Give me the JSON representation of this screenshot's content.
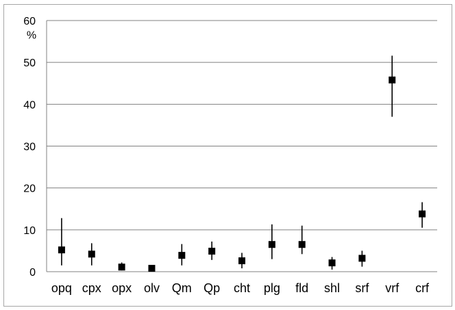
{
  "chart_data": {
    "type": "scatter",
    "title": "",
    "xlabel": "",
    "ylabel": "%",
    "ylim": [
      0,
      60
    ],
    "yticks": [
      "0",
      "10",
      "20",
      "30",
      "40",
      "50",
      "60"
    ],
    "grid": true,
    "categories": [
      "opq",
      "cpx",
      "opx",
      "olv",
      "Qm",
      "Qp",
      "cht",
      "plg",
      "fld",
      "shl",
      "srf",
      "vrf",
      "crf"
    ],
    "series": [
      {
        "values": [
          5.2,
          4.2,
          1.1,
          0.8,
          3.9,
          4.9,
          2.6,
          6.5,
          6.5,
          2.1,
          3.2,
          45.8,
          13.8
        ],
        "error_low": [
          1.5,
          1.5,
          0.3,
          0.2,
          1.5,
          2.8,
          0.8,
          3.0,
          4.2,
          0.5,
          1.2,
          37.0,
          10.5
        ],
        "error_high": [
          12.8,
          6.8,
          2.2,
          1.4,
          6.6,
          7.2,
          4.5,
          11.3,
          11.0,
          3.5,
          5.0,
          51.6,
          16.6
        ]
      }
    ],
    "colors": {
      "marker": "#000000",
      "gridline": "#808080",
      "axis": "#808080",
      "frame": "#a6a6a6"
    }
  }
}
